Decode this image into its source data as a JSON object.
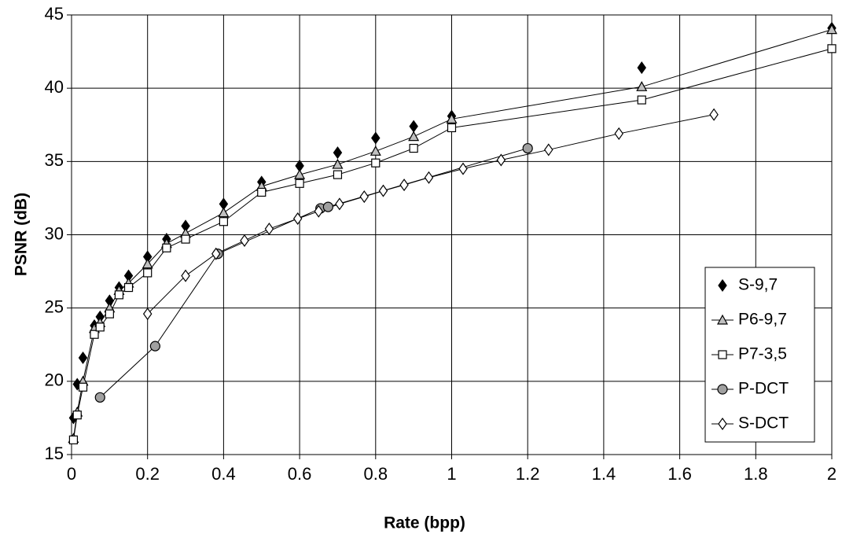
{
  "chart_data": {
    "type": "line",
    "x_label": "Rate (bpp)",
    "y_label": "PSNR (dB)",
    "xlim": [
      0,
      2
    ],
    "xticks": [
      0,
      0.2,
      0.4,
      0.6,
      0.8,
      1,
      1.2,
      1.4,
      1.6,
      1.8,
      2
    ],
    "ylim": [
      15,
      45
    ],
    "yticks": [
      15,
      20,
      25,
      30,
      35,
      40,
      45
    ],
    "grid": true,
    "legend": "right",
    "series": [
      {
        "name": "S-9,7",
        "color": "#000000",
        "marker": "diamond",
        "fill": "#000000",
        "line": false,
        "x": [
          0.005,
          0.015,
          0.03,
          0.06,
          0.075,
          0.1,
          0.125,
          0.15,
          0.2,
          0.25,
          0.3,
          0.4,
          0.5,
          0.6,
          0.7,
          0.8,
          0.9,
          1.0,
          1.5,
          2.0
        ],
        "values": [
          17.5,
          19.8,
          21.6,
          23.8,
          24.4,
          25.5,
          26.4,
          27.2,
          28.5,
          29.7,
          30.6,
          32.1,
          33.6,
          34.7,
          35.6,
          36.6,
          37.4,
          38.1,
          41.4,
          44.1
        ]
      },
      {
        "name": "P6-9,7",
        "color": "#000000",
        "marker": "triangle",
        "fill": "#c0c0c0",
        "line": true,
        "x": [
          0.005,
          0.015,
          0.03,
          0.06,
          0.075,
          0.1,
          0.125,
          0.15,
          0.2,
          0.25,
          0.3,
          0.4,
          0.5,
          0.6,
          0.7,
          0.8,
          0.9,
          1.0,
          1.5,
          2.0
        ],
        "values": [
          16.1,
          17.9,
          20.0,
          23.6,
          24.0,
          25.0,
          26.2,
          26.7,
          28.0,
          29.4,
          30.1,
          31.5,
          33.3,
          34.1,
          34.8,
          35.7,
          36.7,
          37.9,
          40.1,
          44.0
        ]
      },
      {
        "name": "P7-3,5",
        "color": "#000000",
        "marker": "square",
        "fill": "#ffffff",
        "line": true,
        "x": [
          0.005,
          0.015,
          0.03,
          0.06,
          0.075,
          0.1,
          0.125,
          0.15,
          0.2,
          0.25,
          0.3,
          0.4,
          0.5,
          0.6,
          0.7,
          0.8,
          0.9,
          1.0,
          1.5,
          2.0
        ],
        "values": [
          16.0,
          17.7,
          19.6,
          23.2,
          23.7,
          24.6,
          25.9,
          26.4,
          27.4,
          29.1,
          29.7,
          30.9,
          32.9,
          33.5,
          34.1,
          34.9,
          35.9,
          37.3,
          39.2,
          42.7
        ]
      },
      {
        "name": "P-DCT",
        "color": "#000000",
        "marker": "circle",
        "fill": "#a0a0a0",
        "line": true,
        "x": [
          0.075,
          0.22,
          0.385,
          0.655,
          0.675,
          1.2
        ],
        "values": [
          18.9,
          22.4,
          28.7,
          31.8,
          31.9,
          35.9
        ]
      },
      {
        "name": "S-DCT",
        "color": "#000000",
        "marker": "diamond",
        "fill": "#ffffff",
        "line": true,
        "x": [
          0.2,
          0.3,
          0.38,
          0.455,
          0.52,
          0.595,
          0.65,
          0.705,
          0.77,
          0.82,
          0.875,
          0.94,
          1.03,
          1.13,
          1.255,
          1.44,
          1.69
        ],
        "values": [
          24.6,
          27.2,
          28.7,
          29.6,
          30.4,
          31.1,
          31.6,
          32.1,
          32.6,
          33.0,
          33.4,
          33.9,
          34.5,
          35.1,
          35.8,
          36.9,
          38.2
        ]
      }
    ]
  }
}
